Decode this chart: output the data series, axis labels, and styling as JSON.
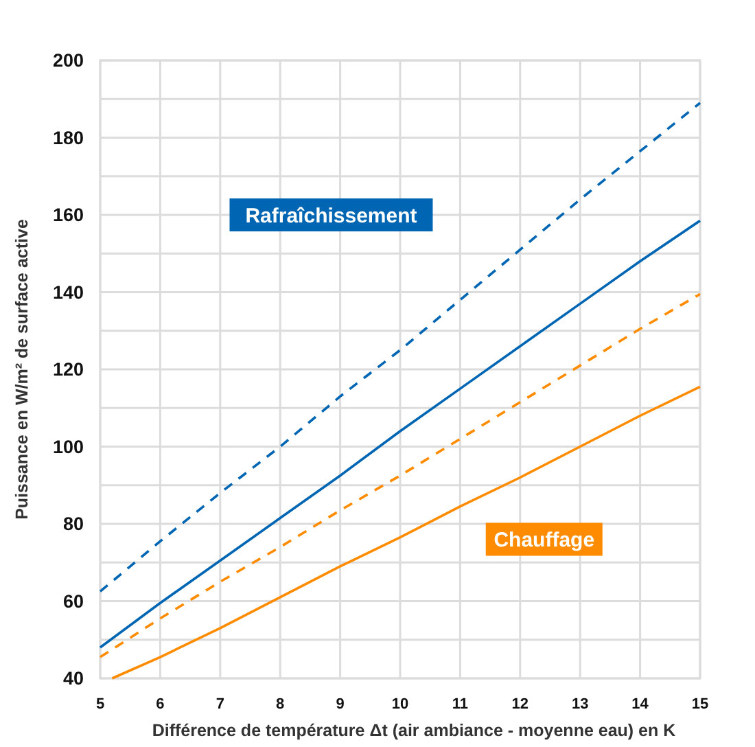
{
  "chart_data": {
    "type": "line",
    "xlabel": "Différence de température Δt (air ambiance - moyenne eau) en K",
    "ylabel": "Puissance en W/m² de surface active",
    "xlim": [
      5,
      15
    ],
    "xticks": [
      5,
      6,
      7,
      8,
      9,
      10,
      11,
      12,
      13,
      14,
      15
    ],
    "ylim": [
      40,
      200
    ],
    "yticks": [
      40,
      {
        "value": 50,
        "label": null
      },
      60,
      {
        "value": 70,
        "label": null
      },
      80,
      {
        "value": 90,
        "label": null
      },
      100,
      {
        "value": 110,
        "label": null
      },
      120,
      {
        "value": 130,
        "label": null
      },
      140,
      {
        "value": 150,
        "label": null
      },
      160,
      {
        "value": 170,
        "label": null
      },
      180,
      {
        "value": 190,
        "label": null
      },
      200
    ],
    "grid": true,
    "marker": "none",
    "series": [
      {
        "color": "#0066b3",
        "line_style": "dashed",
        "x": [
          5,
          6,
          7,
          8,
          9,
          10,
          11,
          12,
          13,
          14,
          15
        ],
        "values": [
          62.5,
          75.5,
          88,
          100,
          113,
          125,
          138,
          151,
          164,
          176.5,
          189
        ]
      },
      {
        "color": "#0066b3",
        "line_style": "solid",
        "x": [
          5,
          6,
          7,
          8,
          9,
          10,
          11,
          12,
          13,
          14,
          15
        ],
        "values": [
          48,
          59.5,
          70.5,
          81.5,
          92.5,
          104,
          115,
          126,
          137,
          148,
          158.5
        ]
      },
      {
        "color": "#ff8c00",
        "line_style": "dashed",
        "x": [
          5,
          6,
          7,
          8,
          9,
          10,
          11,
          12,
          13,
          14,
          15
        ],
        "values": [
          45.5,
          55.5,
          65,
          74,
          83.5,
          92.5,
          102,
          111.5,
          121,
          130.5,
          139.5
        ]
      },
      {
        "color": "#ff8c00",
        "line_style": "solid",
        "x": [
          5.2,
          6,
          7,
          8,
          9,
          10,
          11,
          12,
          13,
          14,
          15
        ],
        "values": [
          40,
          45.5,
          53,
          61,
          69,
          76.5,
          84.5,
          92,
          100,
          108,
          115.5
        ]
      }
    ],
    "annotations": [
      "Rafraîchissement",
      "Chauffage"
    ]
  }
}
